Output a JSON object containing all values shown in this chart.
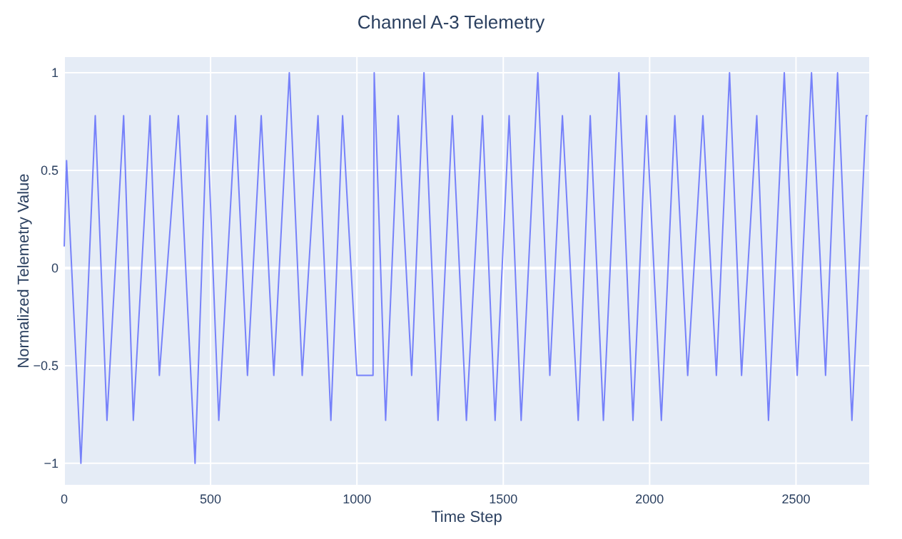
{
  "chart_data": {
    "type": "line",
    "title": "Channel A-3 Telemetry",
    "xlabel": "Time Step",
    "ylabel": "Normalized Telemetry Value",
    "xlim": [
      0,
      2750
    ],
    "xticks": [
      0,
      500,
      1000,
      1500,
      2000,
      2500
    ],
    "ylim": [
      -1.11,
      1.08
    ],
    "yticks": [
      {
        "value": -1,
        "label": "−1"
      },
      {
        "value": -0.5,
        "label": "−0.5"
      },
      0,
      0.5,
      1
    ],
    "grid": true,
    "marker": "none",
    "line_style": "solid",
    "x": [
      0,
      8,
      57,
      106,
      146,
      203,
      236,
      293,
      325,
      390,
      447,
      488,
      528,
      585,
      626,
      673,
      716,
      769,
      813,
      867,
      911,
      951,
      1000,
      1055,
      1059,
      1098,
      1141,
      1187,
      1229,
      1277,
      1326,
      1374,
      1429,
      1472,
      1520,
      1561,
      1618,
      1659,
      1702,
      1756,
      1797,
      1842,
      1895,
      1943,
      1989,
      2040,
      2086,
      2130,
      2182,
      2228,
      2273,
      2314,
      2366,
      2406,
      2460,
      2504,
      2553,
      2601,
      2642,
      2691,
      2740,
      2745
    ],
    "series": [
      {
        "color": "#636efa",
        "values": [
          0.11,
          0.55,
          -1,
          0.78,
          -0.78,
          0.78,
          -0.78,
          0.78,
          -0.55,
          0.78,
          -1,
          0.78,
          -0.78,
          0.78,
          -0.55,
          0.78,
          -0.55,
          1,
          -0.55,
          0.78,
          -0.78,
          0.78,
          -0.55,
          -0.55,
          1,
          -0.78,
          0.78,
          -0.55,
          1,
          -0.78,
          0.78,
          -0.78,
          0.78,
          -0.78,
          0.78,
          -0.78,
          1,
          -0.55,
          0.78,
          -0.78,
          0.78,
          -0.78,
          1,
          -0.78,
          0.78,
          -0.78,
          0.78,
          -0.55,
          0.78,
          -0.55,
          1,
          -0.55,
          0.78,
          -0.78,
          1,
          -0.55,
          1,
          -0.55,
          1,
          -0.78,
          0.78,
          0.78
        ]
      }
    ]
  }
}
